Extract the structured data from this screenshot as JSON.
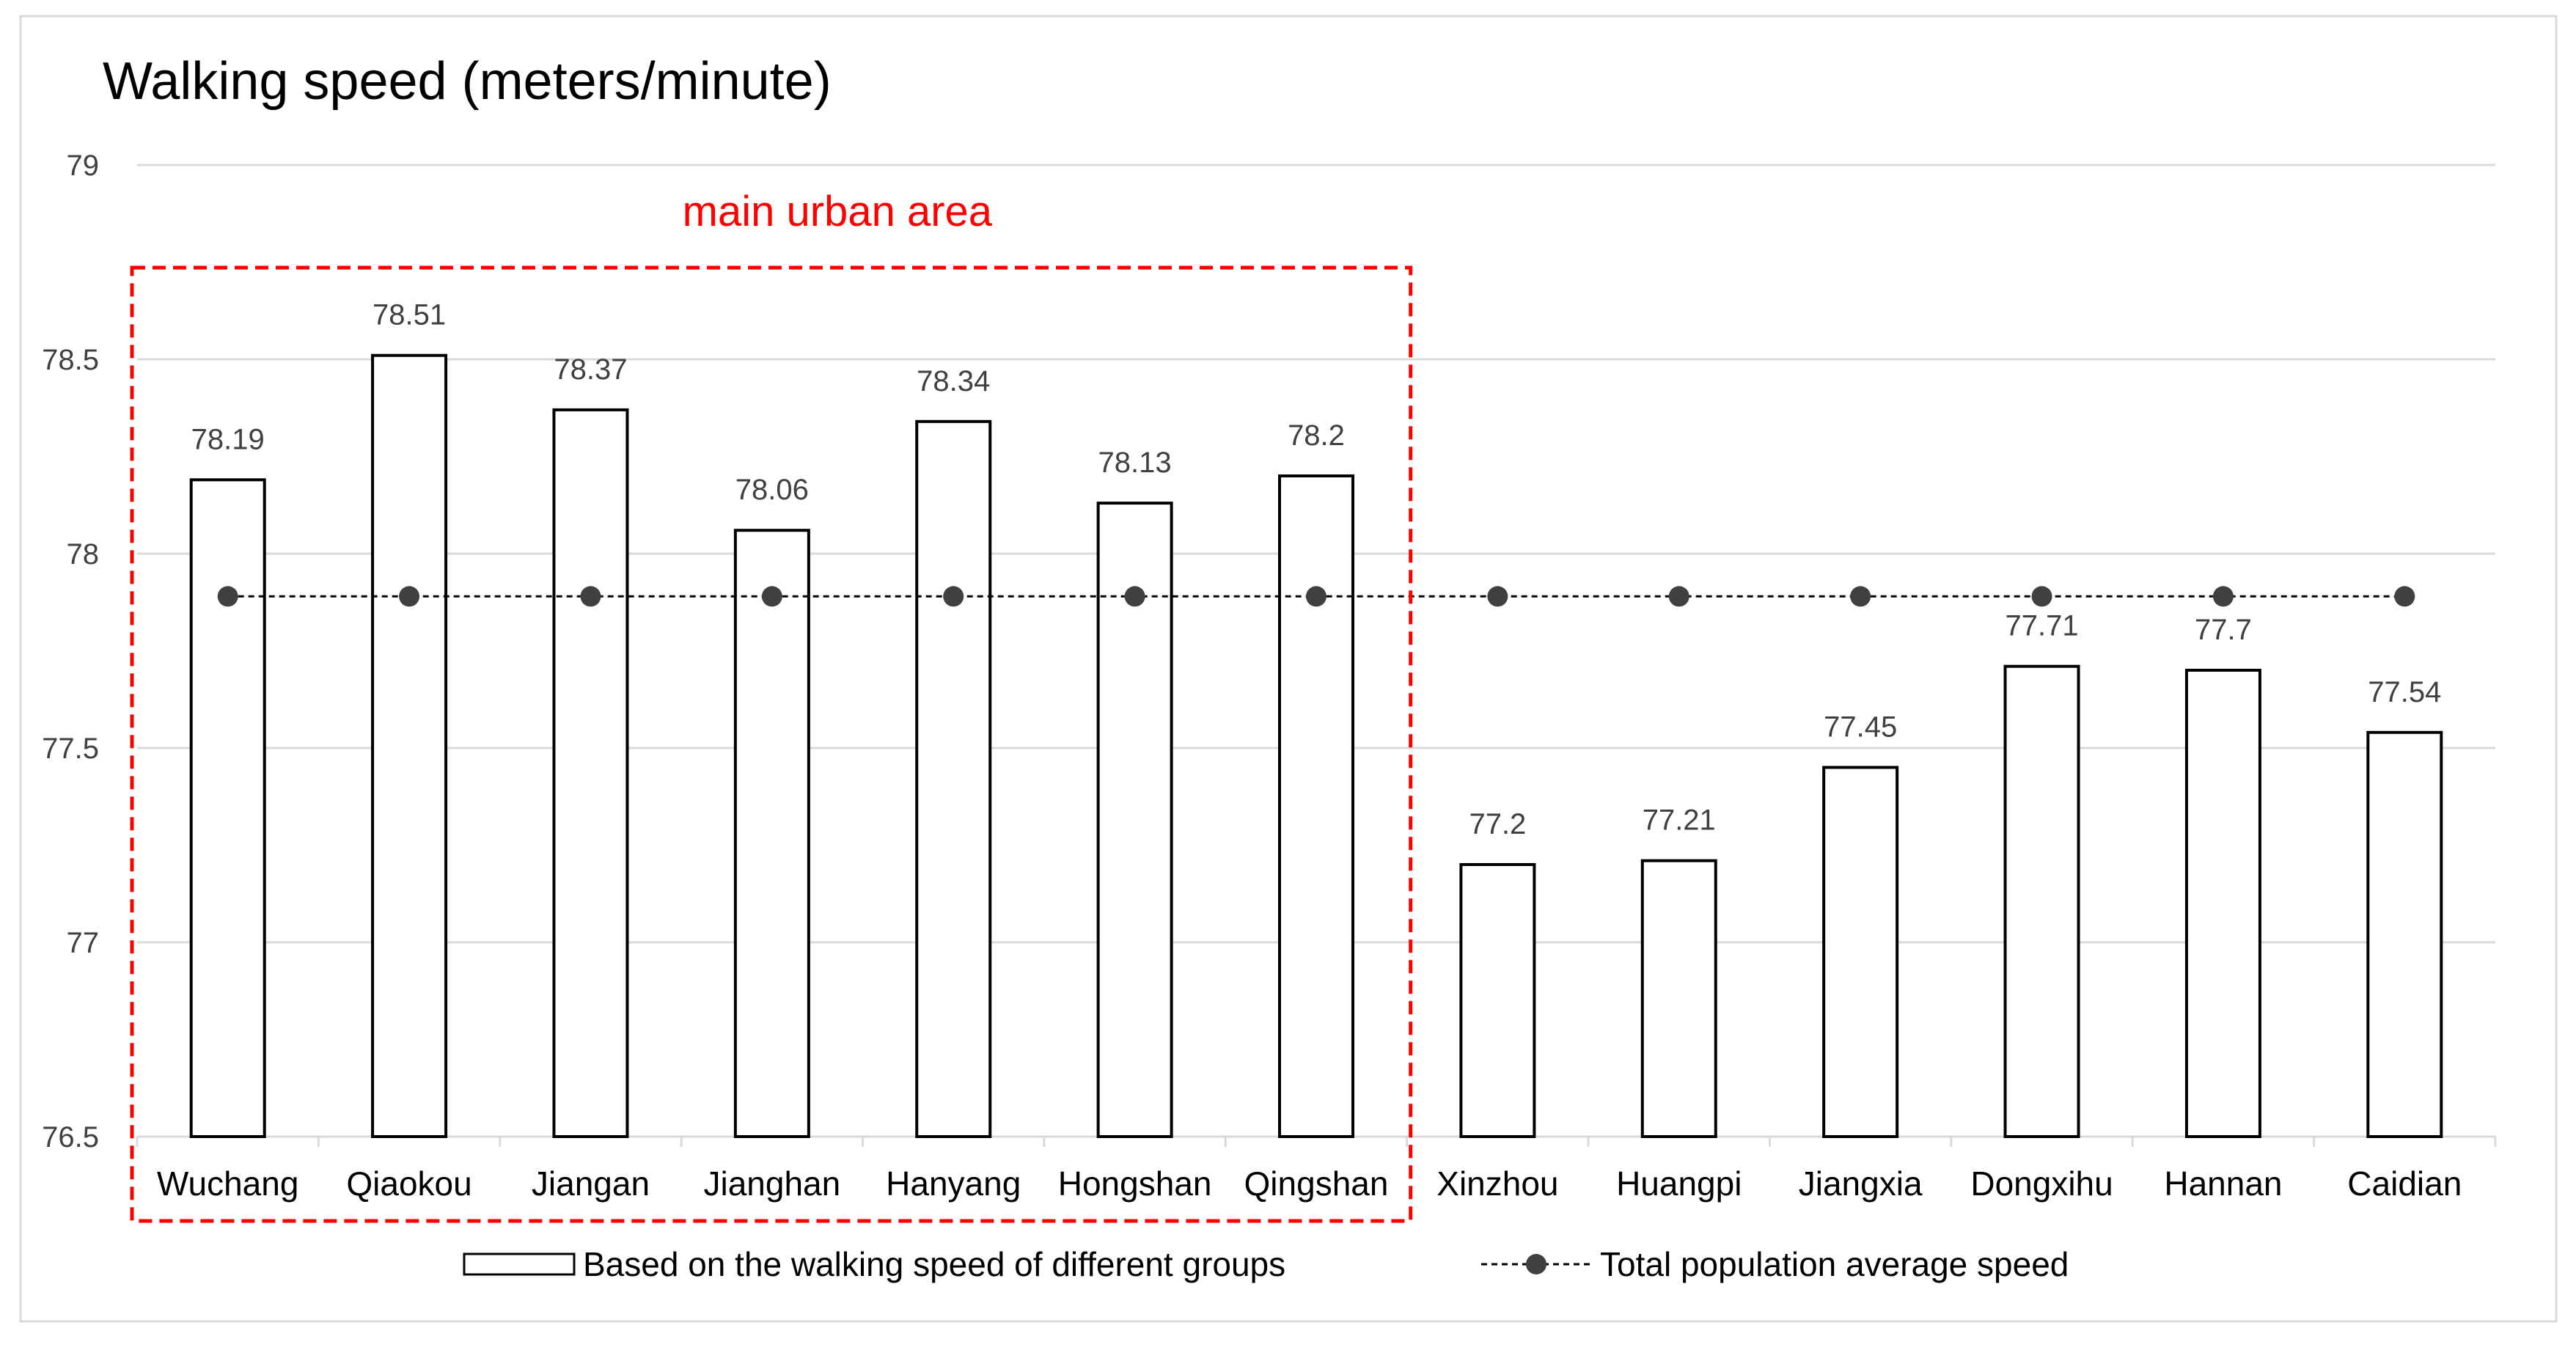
{
  "chart_data": {
    "type": "bar",
    "title": "Walking speed (meters/minute)",
    "categories": [
      "Wuchang",
      "Qiaokou",
      "Jiangan",
      "Jianghan",
      "Hanyang",
      "Hongshan",
      "Qingshan",
      "Xinzhou",
      "Huangpi",
      "Jiangxia",
      "Dongxihu",
      "Hannan",
      "Caidian"
    ],
    "ylim": [
      76.5,
      79
    ],
    "yticks": [
      76.5,
      77,
      77.5,
      78,
      78.5,
      79
    ],
    "grid": true,
    "legend_position": "bottom",
    "series": [
      {
        "name": "Based on the walking speed of different groups",
        "type": "bar",
        "values": [
          78.19,
          78.51,
          78.37,
          78.06,
          78.34,
          78.13,
          78.2,
          77.2,
          77.21,
          77.45,
          77.71,
          77.7,
          77.54
        ],
        "data_labels": [
          "78.19",
          "78.51",
          "78.37",
          "78.06",
          "78.34",
          "78.13",
          "78.2",
          "77.2",
          "77.21",
          "77.45",
          "77.71",
          "77.7",
          "77.54"
        ]
      },
      {
        "name": "Total population average speed",
        "type": "line",
        "values": [
          77.89,
          77.89,
          77.89,
          77.89,
          77.89,
          77.89,
          77.89,
          77.89,
          77.89,
          77.89,
          77.89,
          77.89,
          77.89
        ]
      }
    ],
    "annotation": {
      "text": "main urban area",
      "color": "#ff0000",
      "first_category": "Wuchang",
      "last_category": "Qingshan"
    },
    "colors": {
      "bar_fill": "#ffffff",
      "bar_stroke": "#000000",
      "line": "#000000",
      "marker": "#404040",
      "grid": "#d9d9d9"
    }
  }
}
